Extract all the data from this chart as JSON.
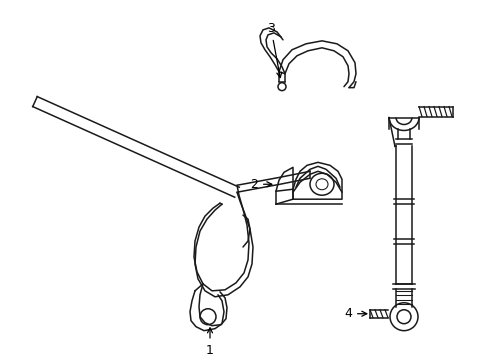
{
  "background_color": "#ffffff",
  "line_color": "#1a1a1a",
  "line_width": 1.1,
  "fig_width": 4.89,
  "fig_height": 3.6,
  "dpi": 100
}
